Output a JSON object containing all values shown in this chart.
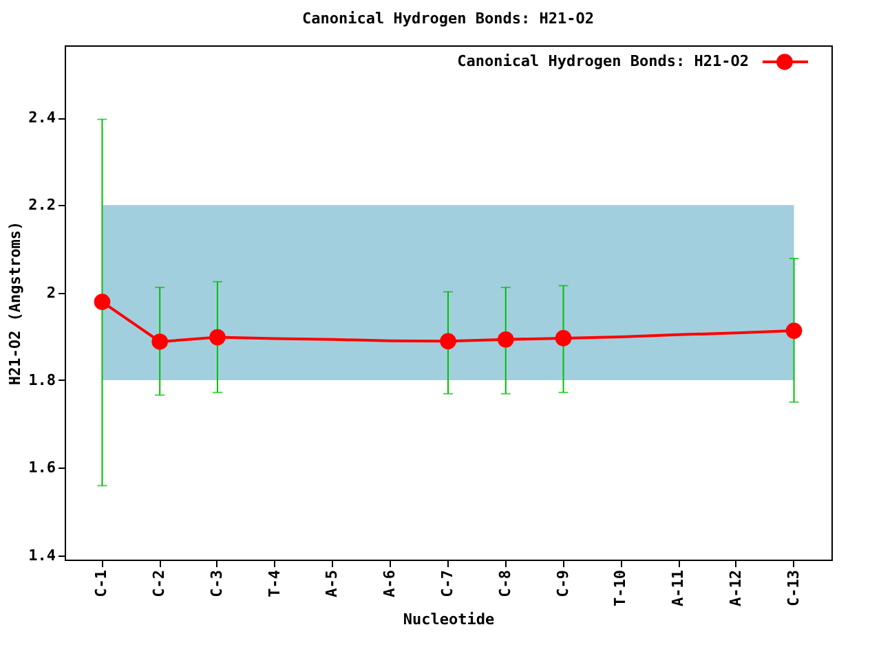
{
  "chart_data": {
    "type": "line",
    "title": "Canonical Hydrogen Bonds: H21-O2",
    "xlabel": "Nucleotide",
    "ylabel": "H21-O2 (Angstroms)",
    "categories": [
      "C-1",
      "C-2",
      "C-3",
      "T-4",
      "A-5",
      "A-6",
      "C-7",
      "C-8",
      "C-9",
      "T-10",
      "A-11",
      "A-12",
      "C-13"
    ],
    "series": [
      {
        "name": "Canonical Hydrogen Bonds: H21-O2",
        "color": "#ff0000",
        "marker": "none",
        "values": [
          1.979,
          1.888,
          1.898,
          1.895,
          1.893,
          1.89,
          1.889,
          1.893,
          1.896,
          1.899,
          1.904,
          1.908,
          1.913
        ]
      },
      {
        "type": "scatter",
        "color": "#ff0000",
        "marker": "circle",
        "values": [
          1.979,
          1.888,
          1.898,
          null,
          null,
          null,
          1.889,
          1.893,
          1.896,
          null,
          null,
          null,
          1.913
        ],
        "errors": [
          [
            1.559,
            2.396
          ],
          [
            1.766,
            2.012
          ],
          [
            1.772,
            2.025
          ],
          null,
          null,
          null,
          [
            1.769,
            2.002
          ],
          [
            1.769,
            2.012
          ],
          [
            1.772,
            2.016
          ],
          null,
          null,
          null,
          [
            1.75,
            2.078
          ]
        ]
      }
    ],
    "ylim": [
      1.39,
      2.565
    ],
    "yticks": [
      1.4,
      1.6,
      1.8,
      2,
      2.2,
      2.4
    ],
    "bands": [
      {
        "axis": "y",
        "from": 1.8,
        "to": 2.2,
        "color": "#a2cfde"
      }
    ],
    "grid": false,
    "legend": "top right"
  }
}
